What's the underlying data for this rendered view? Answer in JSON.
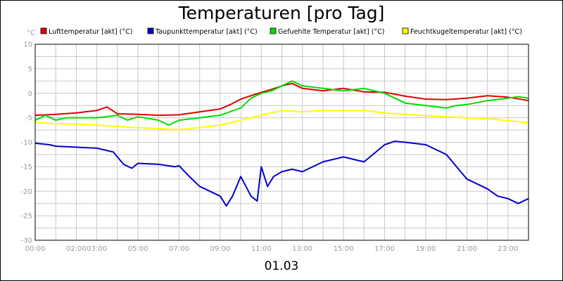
{
  "chart_data": {
    "type": "line",
    "title": "Temperaturen [pro Tag]",
    "ylabel": "°C",
    "xlabel": "01.03",
    "ylim": [
      -30,
      10
    ],
    "yticks": [
      10,
      5,
      0,
      -5,
      -10,
      -15,
      -20,
      -25,
      -30
    ],
    "xlim": [
      0,
      24
    ],
    "xtick_labels": [
      "00:00",
      "02:00",
      "03:00",
      "05:00",
      "07:00",
      "09:00",
      "11:00",
      "13:00",
      "15:00",
      "17:00",
      "19:00",
      "21:00",
      "23:00"
    ],
    "xtick_values": [
      0,
      2,
      3,
      5,
      7,
      9,
      11,
      13,
      15,
      17,
      19,
      21,
      23
    ],
    "grid": true,
    "legend_position": "top",
    "series": [
      {
        "name": "Lufttemperatur [akt] (°C)",
        "color": "#e00000",
        "x": [
          0,
          1,
          2,
          3,
          3.5,
          4,
          5,
          6,
          7,
          8,
          9,
          9.5,
          10,
          10.5,
          11,
          11.5,
          12,
          12.5,
          13,
          14,
          15,
          16,
          17,
          18,
          19,
          20,
          21,
          22,
          23,
          24
        ],
        "y": [
          -4.5,
          -4.3,
          -4,
          -3.5,
          -2.8,
          -4.2,
          -4.3,
          -4.5,
          -4.4,
          -3.8,
          -3.2,
          -2.3,
          -1.2,
          -0.5,
          0.2,
          0.8,
          1.5,
          2,
          1,
          0.5,
          1,
          0.3,
          0.2,
          -0.6,
          -1.2,
          -1.3,
          -1,
          -0.5,
          -0.8,
          -1.5
        ]
      },
      {
        "name": "Taupunkttemperatur [akt] (°C)",
        "color": "#0000cc",
        "x": [
          0,
          0.7,
          1,
          2,
          3,
          3.8,
          4.3,
          4.7,
          5,
          6,
          6.8,
          7,
          7.5,
          8,
          8.5,
          9,
          9.3,
          9.6,
          10,
          10.5,
          10.8,
          11,
          11.3,
          11.6,
          12,
          12.5,
          13,
          13.5,
          14,
          15,
          16,
          17,
          17.5,
          18,
          19,
          19.5,
          20,
          20.5,
          21,
          22,
          22.5,
          23,
          23.5,
          24
        ],
        "y": [
          -10.2,
          -10.5,
          -10.8,
          -11,
          -11.2,
          -12,
          -14.5,
          -15.3,
          -14.3,
          -14.5,
          -15,
          -14.8,
          -17,
          -19,
          -20,
          -21,
          -23,
          -21,
          -17,
          -21,
          -22,
          -15,
          -19,
          -17,
          -16,
          -15.5,
          -16,
          -15,
          -14,
          -13,
          -14,
          -10.5,
          -9.8,
          -10,
          -10.5,
          -11.5,
          -12.5,
          -15,
          -17.5,
          -19.5,
          -21,
          -21.5,
          -22.5,
          -21.5
        ]
      },
      {
        "name": "Gefuehlte Temperatur [akt] (°C)",
        "color": "#00dd00",
        "x": [
          0,
          0.5,
          1,
          1.5,
          2,
          3,
          4,
          4.5,
          5,
          6,
          6.5,
          7,
          8,
          9,
          10,
          10.5,
          11,
          11.5,
          12,
          12.5,
          13,
          14,
          15,
          16,
          17,
          17.5,
          18,
          19,
          20,
          20.5,
          21,
          22,
          23,
          23.5,
          24
        ],
        "y": [
          -5.5,
          -4.5,
          -5.5,
          -5,
          -5,
          -5,
          -4.5,
          -5.5,
          -4.8,
          -5.5,
          -6.5,
          -5.5,
          -5,
          -4.5,
          -3,
          -1,
          0,
          0.5,
          1.5,
          2.5,
          1.5,
          1,
          0.5,
          1,
          0,
          -1,
          -2,
          -2.5,
          -3,
          -2.5,
          -2.3,
          -1.5,
          -1,
          -0.7,
          -1
        ]
      },
      {
        "name": "Feuchtkugeltemperatur [akt] (°C)",
        "color": "#ffff00",
        "x": [
          0,
          1,
          2,
          3,
          4,
          5,
          6,
          7,
          8,
          9,
          10,
          11,
          12,
          13,
          14,
          15,
          16,
          17,
          18,
          19,
          20,
          21,
          22,
          23,
          24
        ],
        "y": [
          -6,
          -6.2,
          -6.3,
          -6.5,
          -6.8,
          -7,
          -7.2,
          -7.4,
          -7,
          -6.5,
          -5.5,
          -4.5,
          -3.5,
          -3.8,
          -3.5,
          -3.5,
          -3.5,
          -4,
          -4.3,
          -4.6,
          -4.8,
          -5,
          -5.2,
          -5.6,
          -6
        ]
      }
    ]
  }
}
